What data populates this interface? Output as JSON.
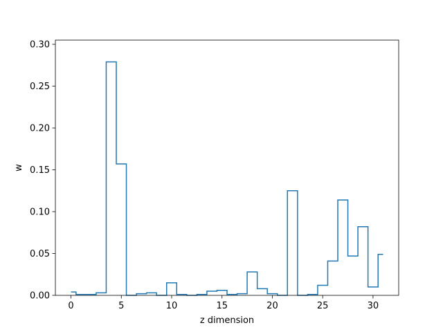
{
  "chart_data": {
    "type": "line",
    "drawstyle": "steps-mid",
    "title": "",
    "xlabel": "z dimension",
    "ylabel": "w",
    "xlim": [
      -1.55,
      32.55
    ],
    "ylim": [
      0,
      0.305
    ],
    "xticks": [
      0,
      5,
      10,
      15,
      20,
      25,
      30
    ],
    "yticks": [
      0.0,
      0.05,
      0.1,
      0.15,
      0.2,
      0.25,
      0.3
    ],
    "ytick_labels": [
      "0.00",
      "0.05",
      "0.10",
      "0.15",
      "0.20",
      "0.25",
      "0.30"
    ],
    "grid": false,
    "line_color": "#1f77b4",
    "x": [
      0,
      1,
      2,
      3,
      4,
      5,
      6,
      7,
      8,
      9,
      10,
      11,
      12,
      13,
      14,
      15,
      16,
      17,
      18,
      19,
      20,
      21,
      22,
      23,
      24,
      25,
      26,
      27,
      28,
      29,
      30,
      31
    ],
    "values": [
      0.004,
      0.001,
      0.001,
      0.003,
      0.279,
      0.157,
      0.0,
      0.002,
      0.003,
      0.0,
      0.015,
      0.001,
      0.0,
      0.001,
      0.005,
      0.006,
      0.001,
      0.002,
      0.028,
      0.008,
      0.002,
      0.0,
      0.125,
      0.0,
      0.001,
      0.012,
      0.041,
      0.114,
      0.047,
      0.082,
      0.01,
      0.049
    ]
  }
}
